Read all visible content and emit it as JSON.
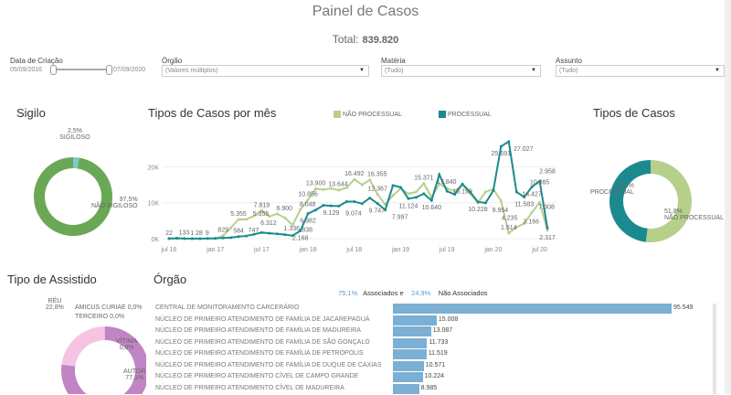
{
  "header": {
    "title": "Painel de Casos",
    "total_label": "Total:",
    "total_value": "839.820"
  },
  "filters": {
    "date": {
      "label": "Data de Criação",
      "start": "05/09/2016",
      "end": "07/09/2020"
    },
    "orgao": {
      "label": "Órgão",
      "value": "(Valores múltiplos)"
    },
    "materia": {
      "label": "Matéria",
      "value": "(Tudo)"
    },
    "assunto": {
      "label": "Assunto",
      "value": "(Tudo)"
    }
  },
  "colors": {
    "processual": "#1b8a8f",
    "nao_processual": "#b6d08c",
    "sigilo_nao": "#6aa856",
    "sigilo_sim": "#7fc8c8",
    "autor": "#c085c4",
    "reu": "#f6c4e2",
    "bar": "#7bafd4",
    "assoc": "#5b9bd5"
  },
  "sigilo": {
    "title": "Sigilo",
    "slices": [
      {
        "label": "SIGILOSO",
        "pct": "2,5%",
        "value": 2.5
      },
      {
        "label": "NÃO SIGILOSO",
        "pct": "97,5%",
        "value": 97.5
      }
    ]
  },
  "tipos_casos": {
    "title": "Tipos de Casos",
    "slices": [
      {
        "label": "PROCESSUAL",
        "pct": "48,2%",
        "value": 48.2
      },
      {
        "label": "NÃO PROCESSUAL",
        "pct": "51,8%",
        "value": 51.8
      }
    ]
  },
  "assistido": {
    "title": "Tipo de Assistido",
    "slices": [
      {
        "label": "AUTOR",
        "pct": "77,1%",
        "value": 77.1
      },
      {
        "label": "RÉU",
        "pct": "22,8%",
        "value": 22.8
      },
      {
        "label": "VÍTIMA",
        "pct": "0,0%",
        "value": 0.05
      },
      {
        "label": "AMICUS CURIAE",
        "pct": "0,0%",
        "value": 0.02
      },
      {
        "label": "TERCEIRO",
        "pct": "0,0%",
        "value": 0.03
      }
    ]
  },
  "chart_data": {
    "type": "line",
    "title": "Tipos de Casos por mês",
    "legend_position": "top",
    "grid": true,
    "ylim": [
      0,
      28000
    ],
    "yticks": [
      "0K",
      "10K",
      "20K"
    ],
    "ytick_values": [
      0,
      10000,
      20000
    ],
    "xticks": [
      "jul 16",
      "jan 17",
      "jul 17",
      "jan 18",
      "jul 18",
      "jan 19",
      "jul 19",
      "jan 20",
      "jul 20"
    ],
    "x_start": "2016-07",
    "series": [
      {
        "name": "NÃO PROCESSUAL",
        "values": [
          0,
          0,
          0,
          0,
          0,
          0,
          0,
          829,
          3000,
          5355,
          5355,
          6312,
          7819,
          6200,
          6900,
          5800,
          3800,
          8048,
          10856,
          13900,
          13644,
          14000,
          13500,
          14200,
          16492,
          15000,
          16355,
          12367,
          9500,
          12000,
          14000,
          12500,
          13000,
          15371,
          11500,
          15200,
          14000,
          13200,
          15000,
          12500,
          10000,
          13000,
          13800,
          10500,
          1514,
          3166,
          4235,
          7308,
          10085,
          2317
        ],
        "labeled_values": [
          829,
          5355,
          6312,
          7819,
          6900,
          8048,
          10856,
          13900,
          13644,
          16492,
          16355,
          12367,
          15371,
          1514,
          3166,
          4235,
          7308,
          10085,
          2317
        ]
      },
      {
        "name": "PROCESSUAL",
        "values": [
          22,
          133,
          28,
          1,
          9,
          50,
          100,
          200,
          300,
          584,
          747,
          1200,
          1700,
          1500,
          1336,
          1100,
          838,
          2168,
          6982,
          8000,
          9300,
          9129,
          9074,
          10300,
          10300,
          9747,
          11300,
          9800,
          7997,
          14800,
          14300,
          11124,
          11500,
          12500,
          10640,
          17840,
          13200,
          12300,
          15190,
          13000,
          10228,
          9954,
          13400,
          25691,
          27027,
          13000,
          11583,
          14427,
          16000,
          2958
        ],
        "labeled_values": [
          22,
          133,
          28,
          1,
          9,
          584,
          747,
          1336,
          838,
          2168,
          6982,
          9129,
          9074,
          9747,
          7997,
          11124,
          10640,
          17840,
          15190,
          10228,
          9954,
          25691,
          27027,
          11583,
          14427,
          2958
        ]
      }
    ]
  },
  "orgao": {
    "title": "Órgão",
    "assoc_pct": "75,1%",
    "assoc_label": "Associados e",
    "nao_assoc_pct": "24,9%",
    "nao_assoc_label": "Não Associados",
    "rows": [
      {
        "name": "CENTRAL DE MONITORAMENTO CARCERÁRIO",
        "label": "95.549",
        "value": 95549
      },
      {
        "name": "NÚCLEO DE PRIMEIRO ATENDIMENTO DE FAMÍLIA DE JACAREPAGUÁ",
        "label": "15.008",
        "value": 15008
      },
      {
        "name": "NÚCLEO DE PRIMEIRO ATENDIMENTO DE FAMÍLIA DE MADUREIRA",
        "label": "13.087",
        "value": 13087
      },
      {
        "name": "NÚCLEO DE PRIMEIRO ATENDIMENTO DE FAMÍLIA DE SÃO GONÇALO",
        "label": "11.733",
        "value": 11733
      },
      {
        "name": "NÚCLEO DE PRIMEIRO ATENDIMENTO DE FAMÍLIA DE PETRÓPOLIS",
        "label": "11.519",
        "value": 11519
      },
      {
        "name": "NÚCLEO DE PRIMEIRO ATENDIMENTO DE FAMÍLIA DE DUQUE DE CAXIAS",
        "label": "10.571",
        "value": 10571
      },
      {
        "name": "NÚCLEO DE PRIMEIRO ATENDIMENTO CÍVEL DE CAMPO GRANDE",
        "label": "10.224",
        "value": 10224
      },
      {
        "name": "NÚCLEO DE PRIMEIRO ATENDIMENTO CÍVEL DE MADUREIRA",
        "label": "8.985",
        "value": 8985
      }
    ]
  }
}
